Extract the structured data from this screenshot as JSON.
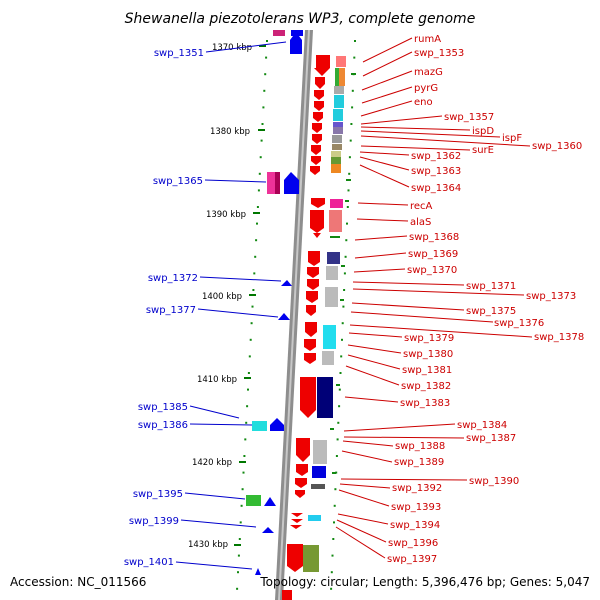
{
  "title": "Shewanella piezotolerans WP3, complete genome",
  "footer": {
    "accession": "Accession: NC_011566",
    "topology": "Topology: circular; Length: 5,396,476 bp; Genes: 5,047"
  },
  "colors": {
    "backbone": "#909090",
    "tick_green": "#007700",
    "forward_gene": "#0000ee",
    "reverse_gene": "#ee0000",
    "left_label": "#0000cc",
    "right_label": "#cc0000"
  },
  "kbp_marks": [
    {
      "label": "1370 kbp",
      "pos_kbp": 1370
    },
    {
      "label": "1380 kbp",
      "pos_kbp": 1380
    },
    {
      "label": "1390 kbp",
      "pos_kbp": 1390
    },
    {
      "label": "1400 kbp",
      "pos_kbp": 1400
    },
    {
      "label": "1410 kbp",
      "pos_kbp": 1410
    },
    {
      "label": "1420 kbp",
      "pos_kbp": 1420
    },
    {
      "label": "1430 kbp",
      "pos_kbp": 1430
    }
  ],
  "genes_left": [
    {
      "label": "swp_1351"
    },
    {
      "label": "swp_1365"
    },
    {
      "label": "swp_1372"
    },
    {
      "label": "swp_1377"
    },
    {
      "label": "swp_1385"
    },
    {
      "label": "swp_1386"
    },
    {
      "label": "swp_1395"
    },
    {
      "label": "swp_1399"
    },
    {
      "label": "swp_1401"
    }
  ],
  "genes_right": [
    {
      "label": "rumA"
    },
    {
      "label": "swp_1353"
    },
    {
      "label": "mazG"
    },
    {
      "label": "pyrG"
    },
    {
      "label": "eno"
    },
    {
      "label": "swp_1357"
    },
    {
      "label": "ispD"
    },
    {
      "label": "ispF"
    },
    {
      "label": "swp_1360"
    },
    {
      "label": "surE"
    },
    {
      "label": "swp_1362"
    },
    {
      "label": "swp_1363"
    },
    {
      "label": "swp_1364"
    },
    {
      "label": "recA"
    },
    {
      "label": "alaS"
    },
    {
      "label": "swp_1368"
    },
    {
      "label": "swp_1369"
    },
    {
      "label": "swp_1370"
    },
    {
      "label": "swp_1371"
    },
    {
      "label": "swp_1373"
    },
    {
      "label": "swp_1375"
    },
    {
      "label": "swp_1376"
    },
    {
      "label": "swp_1378"
    },
    {
      "label": "swp_1379"
    },
    {
      "label": "swp_1380"
    },
    {
      "label": "swp_1381"
    },
    {
      "label": "swp_1382"
    },
    {
      "label": "swp_1383"
    },
    {
      "label": "swp_1384"
    },
    {
      "label": "swp_1387"
    },
    {
      "label": "swp_1388"
    },
    {
      "label": "swp_1389"
    },
    {
      "label": "swp_1390"
    },
    {
      "label": "swp_1392"
    },
    {
      "label": "swp_1393"
    },
    {
      "label": "swp_1394"
    },
    {
      "label": "swp_1396"
    },
    {
      "label": "swp_1397"
    }
  ]
}
